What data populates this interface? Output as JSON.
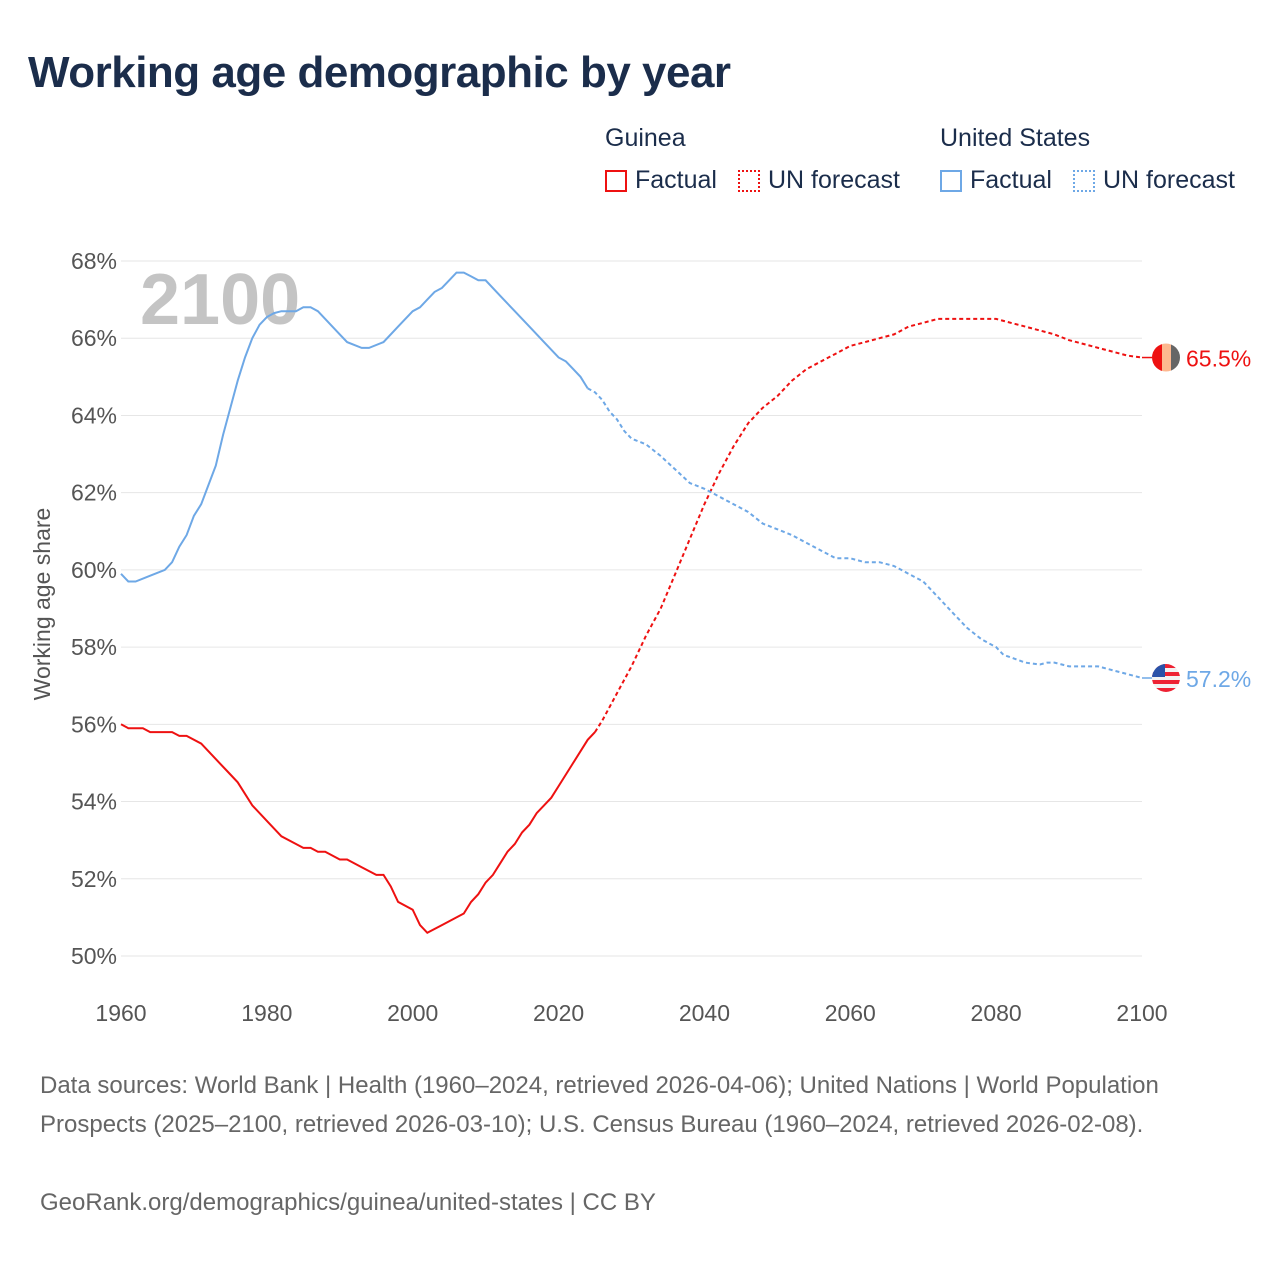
{
  "title": "Working age demographic by year",
  "legend": {
    "groups": [
      {
        "country": "Guinea",
        "factual": "Factual",
        "forecast": "UN forecast",
        "color": "#ee1111"
      },
      {
        "country": "United States",
        "factual": "Factual",
        "forecast": "UN forecast",
        "color": "#6ea8e6"
      }
    ]
  },
  "chart_data": {
    "type": "line",
    "title": "Working age demographic by year",
    "xlabel": "",
    "ylabel": "Working age share",
    "xlim": [
      1960,
      2100
    ],
    "ylim": [
      50,
      68
    ],
    "xticks": [
      "1960",
      "1980",
      "2000",
      "2020",
      "2040",
      "2060",
      "2080",
      "2100"
    ],
    "yticks": [
      "50%",
      "52%",
      "54%",
      "56%",
      "58%",
      "60%",
      "62%",
      "64%",
      "66%",
      "68%"
    ],
    "grid": true,
    "year_watermark": "2100",
    "series": [
      {
        "name": "Guinea",
        "color": "#ee1111",
        "end_label": "65.5%",
        "flag": "guinea-flag",
        "factual": [
          [
            1960,
            56.0
          ],
          [
            1961,
            55.9
          ],
          [
            1963,
            55.9
          ],
          [
            1964,
            55.8
          ],
          [
            1967,
            55.8
          ],
          [
            1968,
            55.7
          ],
          [
            1969,
            55.7
          ],
          [
            1971,
            55.5
          ],
          [
            1973,
            55.1
          ],
          [
            1975,
            54.7
          ],
          [
            1976,
            54.5
          ],
          [
            1978,
            53.9
          ],
          [
            1980,
            53.5
          ],
          [
            1982,
            53.1
          ],
          [
            1984,
            52.9
          ],
          [
            1985,
            52.8
          ],
          [
            1986,
            52.8
          ],
          [
            1987,
            52.7
          ],
          [
            1988,
            52.7
          ],
          [
            1990,
            52.5
          ],
          [
            1991,
            52.5
          ],
          [
            1993,
            52.3
          ],
          [
            1995,
            52.1
          ],
          [
            1996,
            52.1
          ],
          [
            1997,
            51.8
          ],
          [
            1998,
            51.4
          ],
          [
            2000,
            51.2
          ],
          [
            2001,
            50.8
          ],
          [
            2002,
            50.6
          ],
          [
            2004,
            50.8
          ],
          [
            2006,
            51.0
          ],
          [
            2007,
            51.1
          ],
          [
            2008,
            51.4
          ],
          [
            2009,
            51.6
          ],
          [
            2010,
            51.9
          ],
          [
            2011,
            52.1
          ],
          [
            2012,
            52.4
          ],
          [
            2013,
            52.7
          ],
          [
            2014,
            52.9
          ],
          [
            2015,
            53.2
          ],
          [
            2016,
            53.4
          ],
          [
            2017,
            53.7
          ],
          [
            2018,
            53.9
          ],
          [
            2019,
            54.1
          ],
          [
            2020,
            54.4
          ],
          [
            2022,
            55.0
          ],
          [
            2024,
            55.6
          ],
          [
            2025,
            55.8
          ]
        ],
        "forecast": [
          [
            2025,
            55.8
          ],
          [
            2026,
            56.1
          ],
          [
            2028,
            56.8
          ],
          [
            2030,
            57.5
          ],
          [
            2032,
            58.3
          ],
          [
            2034,
            59.0
          ],
          [
            2036,
            59.9
          ],
          [
            2038,
            60.8
          ],
          [
            2040,
            61.7
          ],
          [
            2042,
            62.5
          ],
          [
            2044,
            63.2
          ],
          [
            2046,
            63.8
          ],
          [
            2048,
            64.2
          ],
          [
            2050,
            64.5
          ],
          [
            2052,
            64.9
          ],
          [
            2054,
            65.2
          ],
          [
            2056,
            65.4
          ],
          [
            2058,
            65.6
          ],
          [
            2060,
            65.8
          ],
          [
            2062,
            65.9
          ],
          [
            2064,
            66.0
          ],
          [
            2066,
            66.1
          ],
          [
            2068,
            66.3
          ],
          [
            2070,
            66.4
          ],
          [
            2072,
            66.5
          ],
          [
            2080,
            66.5
          ],
          [
            2082,
            66.4
          ],
          [
            2084,
            66.3
          ],
          [
            2086,
            66.2
          ],
          [
            2088,
            66.1
          ],
          [
            2090,
            65.95
          ],
          [
            2092,
            65.85
          ],
          [
            2094,
            65.75
          ],
          [
            2096,
            65.65
          ],
          [
            2098,
            65.55
          ],
          [
            2100,
            65.5
          ]
        ]
      },
      {
        "name": "United States",
        "color": "#6ea8e6",
        "end_label": "57.2%",
        "flag": "us-flag",
        "factual": [
          [
            1960,
            59.9
          ],
          [
            1961,
            59.7
          ],
          [
            1962,
            59.7
          ],
          [
            1964,
            59.85
          ],
          [
            1966,
            60.0
          ],
          [
            1967,
            60.2
          ],
          [
            1968,
            60.6
          ],
          [
            1969,
            60.9
          ],
          [
            1970,
            61.4
          ],
          [
            1971,
            61.7
          ],
          [
            1972,
            62.2
          ],
          [
            1973,
            62.7
          ],
          [
            1974,
            63.5
          ],
          [
            1975,
            64.2
          ],
          [
            1976,
            64.9
          ],
          [
            1977,
            65.5
          ],
          [
            1978,
            66.0
          ],
          [
            1979,
            66.35
          ],
          [
            1980,
            66.55
          ],
          [
            1981,
            66.65
          ],
          [
            1982,
            66.7
          ],
          [
            1984,
            66.7
          ],
          [
            1985,
            66.8
          ],
          [
            1986,
            66.8
          ],
          [
            1987,
            66.7
          ],
          [
            1988,
            66.5
          ],
          [
            1990,
            66.1
          ],
          [
            1991,
            65.9
          ],
          [
            1993,
            65.75
          ],
          [
            1994,
            65.75
          ],
          [
            1996,
            65.9
          ],
          [
            1998,
            66.3
          ],
          [
            2000,
            66.7
          ],
          [
            2001,
            66.8
          ],
          [
            2002,
            67.0
          ],
          [
            2003,
            67.2
          ],
          [
            2004,
            67.3
          ],
          [
            2005,
            67.5
          ],
          [
            2006,
            67.7
          ],
          [
            2007,
            67.7
          ],
          [
            2008,
            67.6
          ],
          [
            2009,
            67.5
          ],
          [
            2010,
            67.5
          ],
          [
            2012,
            67.1
          ],
          [
            2014,
            66.7
          ],
          [
            2016,
            66.3
          ],
          [
            2018,
            65.9
          ],
          [
            2020,
            65.5
          ],
          [
            2021,
            65.4
          ],
          [
            2022,
            65.2
          ],
          [
            2023,
            65.0
          ],
          [
            2024,
            64.7
          ]
        ],
        "forecast": [
          [
            2024,
            64.7
          ],
          [
            2025,
            64.6
          ],
          [
            2026,
            64.4
          ],
          [
            2027,
            64.1
          ],
          [
            2028,
            63.9
          ],
          [
            2029,
            63.6
          ],
          [
            2030,
            63.4
          ],
          [
            2032,
            63.25
          ],
          [
            2034,
            62.95
          ],
          [
            2036,
            62.6
          ],
          [
            2038,
            62.25
          ],
          [
            2040,
            62.1
          ],
          [
            2042,
            61.9
          ],
          [
            2044,
            61.7
          ],
          [
            2046,
            61.5
          ],
          [
            2048,
            61.2
          ],
          [
            2050,
            61.05
          ],
          [
            2052,
            60.9
          ],
          [
            2054,
            60.7
          ],
          [
            2056,
            60.5
          ],
          [
            2058,
            60.3
          ],
          [
            2060,
            60.3
          ],
          [
            2062,
            60.2
          ],
          [
            2064,
            60.2
          ],
          [
            2066,
            60.1
          ],
          [
            2068,
            59.9
          ],
          [
            2070,
            59.7
          ],
          [
            2072,
            59.3
          ],
          [
            2074,
            58.9
          ],
          [
            2076,
            58.5
          ],
          [
            2078,
            58.2
          ],
          [
            2080,
            58.0
          ],
          [
            2081,
            57.8
          ],
          [
            2084,
            57.6
          ],
          [
            2086,
            57.55
          ],
          [
            2087,
            57.6
          ],
          [
            2088,
            57.6
          ],
          [
            2090,
            57.5
          ],
          [
            2094,
            57.5
          ],
          [
            2096,
            57.4
          ],
          [
            2098,
            57.3
          ],
          [
            2100,
            57.2
          ]
        ]
      }
    ]
  },
  "footer": {
    "sources": "Data sources: World Bank | Health (1960–2024, retrieved 2026-04-06); United Nations | World Population Prospects (2025–2100, retrieved 2026-03-10); U.S. Census Bureau (1960–2024, retrieved 2026-02-08).",
    "link": "GeoRank.org/demographics/guinea/united-states | CC BY"
  }
}
